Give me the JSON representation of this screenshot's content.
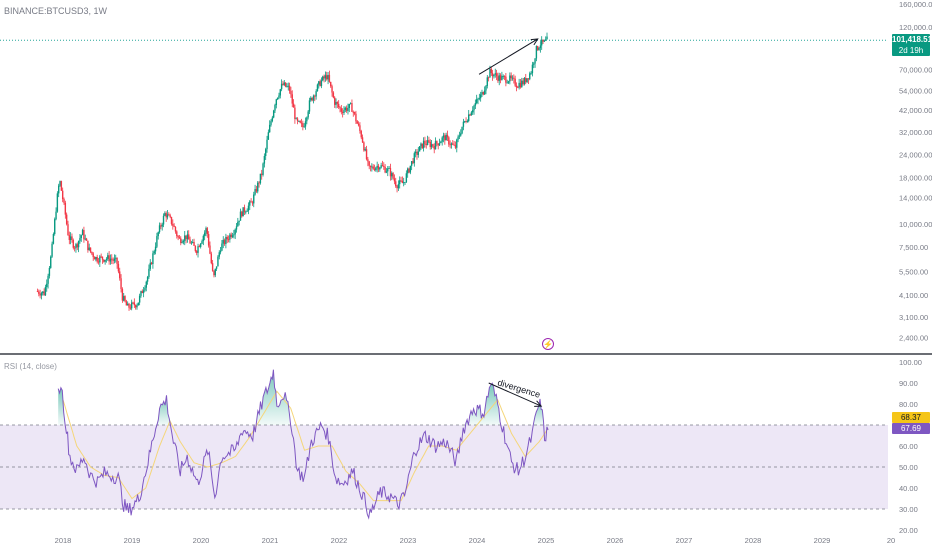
{
  "header": {
    "symbol": "BINANCE:BTCUSD3, 1W"
  },
  "rsi_panel": {
    "title": "RSI (14, close)",
    "ma_value": "68.37",
    "rsi_value": "67.69",
    "annotation": "divergence"
  },
  "last_price": {
    "price": "101,418.51",
    "countdown": "2d 19h"
  },
  "icons": {
    "lightning": "lightning-icon"
  },
  "colors": {
    "up": "#089981",
    "down": "#f23645",
    "rsi_line": "#7e57c2",
    "rsi_ma": "#f5d67a",
    "rsi_band": "#ede7f6",
    "price_line": "#26a69a"
  },
  "chart_data": [
    {
      "type": "candlestick",
      "title": "BINANCE:BTCUSD3, 1W",
      "scale": "log",
      "ylim": [
        2000,
        160000
      ],
      "y_ticks": [
        {
          "value": 160000,
          "label": "160,000.00"
        },
        {
          "value": 120000,
          "label": "120,000.00"
        },
        {
          "value": 70000,
          "label": "70,000.00"
        },
        {
          "value": 54000,
          "label": "54,000.00"
        },
        {
          "value": 42000,
          "label": "42,000.00"
        },
        {
          "value": 32000,
          "label": "32,000.00"
        },
        {
          "value": 24000,
          "label": "24,000.00"
        },
        {
          "value": 18000,
          "label": "18,000.00"
        },
        {
          "value": 14000,
          "label": "14,000.00"
        },
        {
          "value": 10000,
          "label": "10,000.00"
        },
        {
          "value": 7500,
          "label": "7,500.00"
        },
        {
          "value": 5500,
          "label": "5,500.00"
        },
        {
          "value": 4100,
          "label": "4,100.00"
        },
        {
          "value": 3100,
          "label": "3,100.00"
        },
        {
          "value": 2400,
          "label": "2,400.00"
        }
      ],
      "x_ticks": [
        "2018",
        "2019",
        "2020",
        "2021",
        "2022",
        "2023",
        "2024",
        "2025",
        "2026",
        "2027",
        "2028",
        "2029",
        "20"
      ],
      "last_price": 101418.51,
      "price_path": [
        [
          2017.63,
          4300
        ],
        [
          2017.75,
          4200
        ],
        [
          2017.85,
          6800
        ],
        [
          2017.93,
          13500
        ],
        [
          2017.97,
          17500
        ],
        [
          2018.05,
          11500
        ],
        [
          2018.1,
          8500
        ],
        [
          2018.2,
          7500
        ],
        [
          2018.3,
          9000
        ],
        [
          2018.4,
          7200
        ],
        [
          2018.5,
          6500
        ],
        [
          2018.6,
          6500
        ],
        [
          2018.7,
          6500
        ],
        [
          2018.8,
          6200
        ],
        [
          2018.88,
          4000
        ],
        [
          2018.95,
          3500
        ],
        [
          2019.1,
          3700
        ],
        [
          2019.25,
          5200
        ],
        [
          2019.4,
          9000
        ],
        [
          2019.5,
          11500
        ],
        [
          2019.6,
          10200
        ],
        [
          2019.7,
          8200
        ],
        [
          2019.8,
          8600
        ],
        [
          2019.95,
          7200
        ],
        [
          2020.1,
          9500
        ],
        [
          2020.2,
          5000
        ],
        [
          2020.3,
          7500
        ],
        [
          2020.5,
          9300
        ],
        [
          2020.6,
          11500
        ],
        [
          2020.75,
          13000
        ],
        [
          2020.9,
          19000
        ],
        [
          2021.0,
          32000
        ],
        [
          2021.1,
          48000
        ],
        [
          2021.2,
          58000
        ],
        [
          2021.3,
          55000
        ],
        [
          2021.4,
          36000
        ],
        [
          2021.5,
          34000
        ],
        [
          2021.6,
          47000
        ],
        [
          2021.75,
          60000
        ],
        [
          2021.85,
          65000
        ],
        [
          2021.95,
          47000
        ],
        [
          2022.05,
          42000
        ],
        [
          2022.2,
          44000
        ],
        [
          2022.35,
          30000
        ],
        [
          2022.45,
          20000
        ],
        [
          2022.6,
          21000
        ],
        [
          2022.75,
          19500
        ],
        [
          2022.85,
          16500
        ],
        [
          2022.95,
          16800
        ],
        [
          2023.1,
          23000
        ],
        [
          2023.25,
          28000
        ],
        [
          2023.4,
          27000
        ],
        [
          2023.55,
          30000
        ],
        [
          2023.7,
          26000
        ],
        [
          2023.8,
          34000
        ],
        [
          2023.95,
          43000
        ],
        [
          2024.1,
          52000
        ],
        [
          2024.2,
          68000
        ],
        [
          2024.35,
          63000
        ],
        [
          2024.5,
          62000
        ],
        [
          2024.6,
          58000
        ],
        [
          2024.7,
          60000
        ],
        [
          2024.8,
          68000
        ],
        [
          2024.88,
          90000
        ],
        [
          2024.93,
          97000
        ],
        [
          2025.0,
          98000
        ],
        [
          2025.03,
          101418.51
        ]
      ],
      "annotations": [
        "arrow from 2024.0 to 2024.93 above price"
      ]
    },
    {
      "type": "line",
      "title": "RSI (14, close)",
      "ylim": [
        20,
        100
      ],
      "y_ticks": [
        100,
        90,
        80,
        70,
        60,
        50,
        40,
        30,
        20
      ],
      "y_tick_labels": [
        "100.00",
        "90.00",
        "80.00",
        "70.00",
        "60.00",
        "50.00",
        "40.00",
        "30.00",
        "20.00"
      ],
      "bands": {
        "upper": 70,
        "middle": 50,
        "lower": 30
      },
      "series": [
        {
          "role": "rsi",
          "points": [
            [
              2017.93,
              85
            ],
            [
              2017.97,
              90
            ],
            [
              2018.05,
              68
            ],
            [
              2018.1,
              55
            ],
            [
              2018.2,
              48
            ],
            [
              2018.3,
              55
            ],
            [
              2018.4,
              46
            ],
            [
              2018.5,
              43
            ],
            [
              2018.6,
              47
            ],
            [
              2018.7,
              46
            ],
            [
              2018.8,
              45
            ],
            [
              2018.88,
              32
            ],
            [
              2018.95,
              29
            ],
            [
              2019.1,
              35
            ],
            [
              2019.25,
              55
            ],
            [
              2019.4,
              78
            ],
            [
              2019.5,
              82
            ],
            [
              2019.6,
              62
            ],
            [
              2019.7,
              48
            ],
            [
              2019.8,
              55
            ],
            [
              2019.95,
              42
            ],
            [
              2020.1,
              58
            ],
            [
              2020.2,
              36
            ],
            [
              2020.3,
              55
            ],
            [
              2020.5,
              58
            ],
            [
              2020.6,
              68
            ],
            [
              2020.75,
              65
            ],
            [
              2020.9,
              82
            ],
            [
              2021.0,
              90
            ],
            [
              2021.05,
              96
            ],
            [
              2021.1,
              80
            ],
            [
              2021.2,
              85
            ],
            [
              2021.3,
              73
            ],
            [
              2021.4,
              48
            ],
            [
              2021.5,
              45
            ],
            [
              2021.6,
              62
            ],
            [
              2021.75,
              70
            ],
            [
              2021.85,
              64
            ],
            [
              2021.95,
              45
            ],
            [
              2022.05,
              42
            ],
            [
              2022.2,
              48
            ],
            [
              2022.35,
              36
            ],
            [
              2022.45,
              27
            ],
            [
              2022.6,
              38
            ],
            [
              2022.75,
              36
            ],
            [
              2022.85,
              32
            ],
            [
              2022.95,
              36
            ],
            [
              2023.1,
              58
            ],
            [
              2023.25,
              65
            ],
            [
              2023.4,
              60
            ],
            [
              2023.55,
              62
            ],
            [
              2023.7,
              52
            ],
            [
              2023.8,
              68
            ],
            [
              2023.95,
              78
            ],
            [
              2024.1,
              76
            ],
            [
              2024.2,
              90
            ],
            [
              2024.3,
              80
            ],
            [
              2024.35,
              72
            ],
            [
              2024.5,
              52
            ],
            [
              2024.6,
              48
            ],
            [
              2024.7,
              55
            ],
            [
              2024.8,
              65
            ],
            [
              2024.88,
              78
            ],
            [
              2024.93,
              80
            ],
            [
              2024.98,
              64
            ],
            [
              2025.03,
              67.69
            ]
          ]
        },
        {
          "role": "rsi_ma",
          "points": [
            [
              2018.0,
              82
            ],
            [
              2018.2,
              60
            ],
            [
              2018.4,
              50
            ],
            [
              2018.6,
              46
            ],
            [
              2018.8,
              45
            ],
            [
              2019.0,
              35
            ],
            [
              2019.2,
              40
            ],
            [
              2019.4,
              60
            ],
            [
              2019.55,
              72
            ],
            [
              2019.7,
              62
            ],
            [
              2019.9,
              52
            ],
            [
              2020.1,
              50
            ],
            [
              2020.3,
              52
            ],
            [
              2020.5,
              55
            ],
            [
              2020.7,
              64
            ],
            [
              2020.9,
              75
            ],
            [
              2021.1,
              86
            ],
            [
              2021.3,
              78
            ],
            [
              2021.5,
              58
            ],
            [
              2021.7,
              60
            ],
            [
              2021.9,
              60
            ],
            [
              2022.1,
              48
            ],
            [
              2022.3,
              42
            ],
            [
              2022.5,
              34
            ],
            [
              2022.7,
              34
            ],
            [
              2022.9,
              34
            ],
            [
              2023.1,
              48
            ],
            [
              2023.3,
              60
            ],
            [
              2023.5,
              60
            ],
            [
              2023.7,
              58
            ],
            [
              2023.9,
              66
            ],
            [
              2024.1,
              74
            ],
            [
              2024.3,
              82
            ],
            [
              2024.5,
              66
            ],
            [
              2024.7,
              55
            ],
            [
              2024.9,
              62
            ],
            [
              2025.03,
              68.37
            ]
          ]
        }
      ],
      "annotations": [
        "divergence"
      ]
    }
  ]
}
